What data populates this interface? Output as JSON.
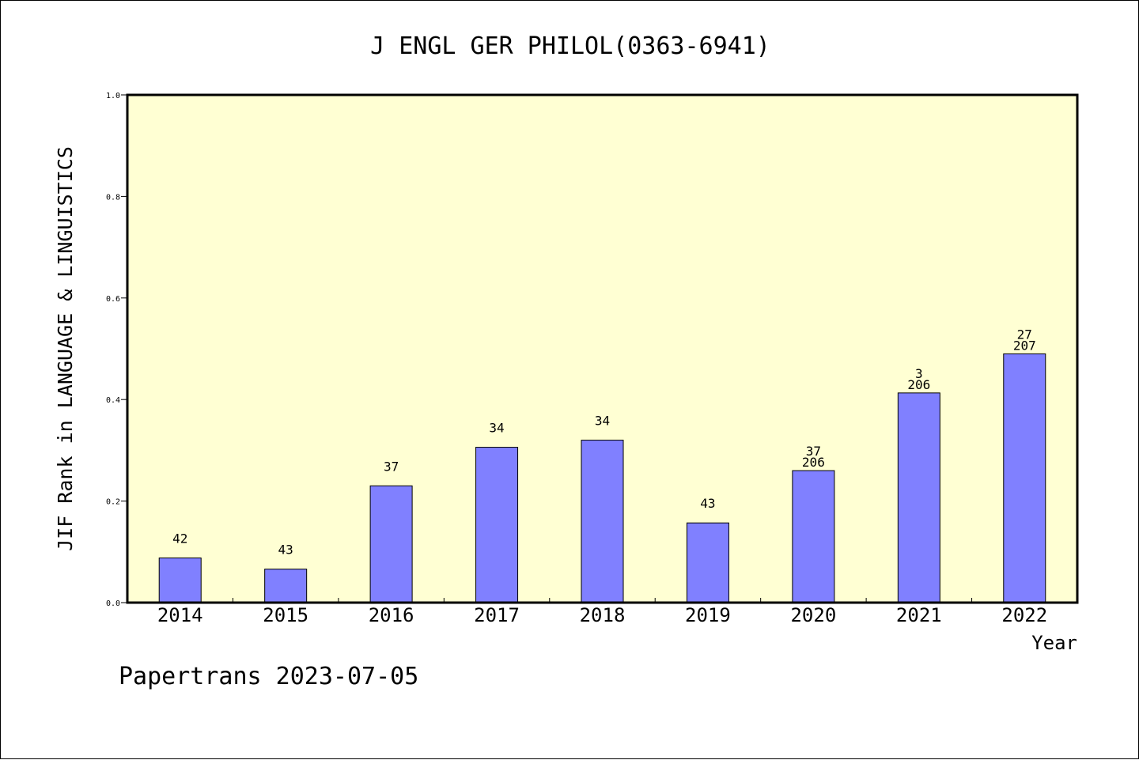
{
  "chart_data": {
    "type": "bar",
    "title": "J ENGL GER PHILOL(0363-6941)",
    "xlabel": "Year",
    "ylabel": "JIF Rank in LANGUAGE & LINGUISTICS",
    "ylim": [
      0,
      1.0
    ],
    "yticks": [
      "0.0",
      "0.2",
      "0.4",
      "0.6",
      "0.8",
      "1.0"
    ],
    "categories": [
      "2014",
      "2015",
      "2016",
      "2017",
      "2018",
      "2019",
      "2020",
      "2021",
      "2022"
    ],
    "values": [
      0.088,
      0.066,
      0.23,
      0.306,
      0.32,
      0.157,
      0.26,
      0.413,
      0.49
    ],
    "labels": [
      [
        "42"
      ],
      [
        "43"
      ],
      [
        "37"
      ],
      [
        "34"
      ],
      [
        "34"
      ],
      [
        "43"
      ],
      [
        "37",
        "206"
      ],
      [
        "3",
        "206"
      ],
      [
        "27",
        "207"
      ]
    ],
    "grid": false,
    "colors": {
      "plot_background": "#ffffd3",
      "bar_fill": "#8080ff",
      "bar_stroke": "#000000"
    }
  },
  "footer": "Papertrans 2023-07-05"
}
